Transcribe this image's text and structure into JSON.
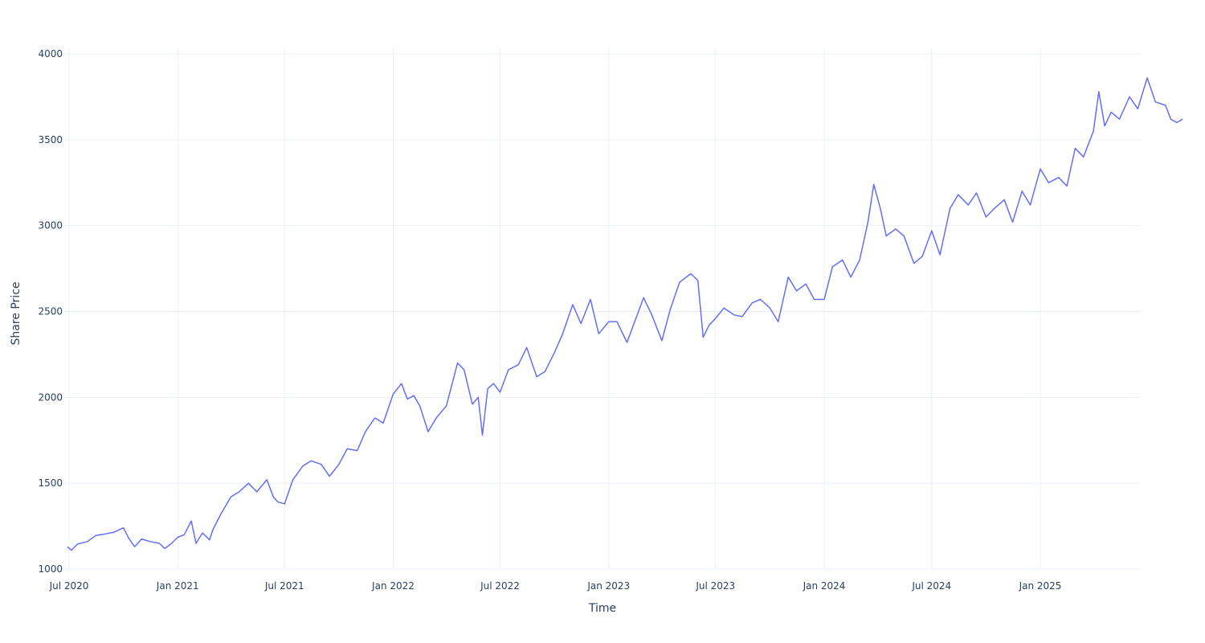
{
  "chart_data": {
    "type": "line",
    "title": "",
    "xlabel": "Time",
    "ylabel": "Share Price",
    "grid": true,
    "legend": "none",
    "line_color": "#636efa",
    "xlim": [
      "2020-07-01",
      "2025-09-30"
    ],
    "ylim": [
      1000,
      4000
    ],
    "x_ticks": [
      {
        "date": "2020-07-01",
        "label": "Jul 2020"
      },
      {
        "date": "2021-01-01",
        "label": "Jan 2021"
      },
      {
        "date": "2021-07-01",
        "label": "Jul 2021"
      },
      {
        "date": "2022-01-01",
        "label": "Jan 2022"
      },
      {
        "date": "2022-07-01",
        "label": "Jul 2022"
      },
      {
        "date": "2023-01-01",
        "label": "Jan 2023"
      },
      {
        "date": "2023-07-01",
        "label": "Jul 2023"
      },
      {
        "date": "2024-01-01",
        "label": "Jan 2024"
      },
      {
        "date": "2024-07-01",
        "label": "Jul 2024"
      },
      {
        "date": "2025-01-01",
        "label": "Jan 2025"
      }
    ],
    "y_ticks": [
      1000,
      1500,
      2000,
      2500,
      3000,
      3500,
      4000
    ],
    "series": [
      {
        "x": [
          "2020-06-28",
          "2020-07-05",
          "2020-07-15",
          "2020-08-01",
          "2020-08-15",
          "2020-09-01",
          "2020-09-15",
          "2020-10-01",
          "2020-10-10",
          "2020-10-20",
          "2020-11-01",
          "2020-11-15",
          "2020-12-01",
          "2020-12-10",
          "2020-12-20",
          "2021-01-01",
          "2021-01-12",
          "2021-01-24",
          "2021-02-01",
          "2021-02-12",
          "2021-02-24",
          "2021-03-01",
          "2021-03-15",
          "2021-04-01",
          "2021-04-15",
          "2021-05-01",
          "2021-05-15",
          "2021-06-01",
          "2021-06-12",
          "2021-06-20",
          "2021-07-01",
          "2021-07-15",
          "2021-08-01",
          "2021-08-15",
          "2021-09-01",
          "2021-09-15",
          "2021-10-01",
          "2021-10-15",
          "2021-11-01",
          "2021-11-15",
          "2021-12-01",
          "2021-12-15",
          "2022-01-01",
          "2022-01-15",
          "2022-01-25",
          "2022-02-05",
          "2022-02-15",
          "2022-03-01",
          "2022-03-15",
          "2022-04-01",
          "2022-04-20",
          "2022-05-01",
          "2022-05-15",
          "2022-05-25",
          "2022-06-01",
          "2022-06-10",
          "2022-06-20",
          "2022-07-01",
          "2022-07-15",
          "2022-08-01",
          "2022-08-15",
          "2022-09-01",
          "2022-09-15",
          "2022-10-01",
          "2022-10-15",
          "2022-11-01",
          "2022-11-15",
          "2022-12-01",
          "2022-12-15",
          "2023-01-01",
          "2023-01-15",
          "2023-02-01",
          "2023-02-15",
          "2023-03-01",
          "2023-03-15",
          "2023-04-01",
          "2023-04-15",
          "2023-05-01",
          "2023-05-20",
          "2023-06-01",
          "2023-06-10",
          "2023-06-20",
          "2023-07-01",
          "2023-07-15",
          "2023-08-01",
          "2023-08-15",
          "2023-09-01",
          "2023-09-15",
          "2023-10-01",
          "2023-10-15",
          "2023-11-01",
          "2023-11-15",
          "2023-12-01",
          "2023-12-15",
          "2024-01-01",
          "2024-01-15",
          "2024-02-01",
          "2024-02-15",
          "2024-03-01",
          "2024-03-15",
          "2024-03-25",
          "2024-04-05",
          "2024-04-15",
          "2024-05-01",
          "2024-05-15",
          "2024-06-01",
          "2024-06-15",
          "2024-07-01",
          "2024-07-15",
          "2024-08-01",
          "2024-08-15",
          "2024-09-01",
          "2024-09-15",
          "2024-10-01",
          "2024-10-15",
          "2024-11-01",
          "2024-11-15",
          "2024-12-01",
          "2024-12-15",
          "2025-01-01",
          "2025-01-15",
          "2025-02-01",
          "2025-02-15",
          "2025-03-01",
          "2025-03-15",
          "2025-04-01",
          "2025-04-10",
          "2025-04-20",
          "2025-05-01",
          "2025-05-15",
          "2025-06-01",
          "2025-06-15",
          "2025-07-01",
          "2025-07-15",
          "2025-08-01",
          "2025-08-10",
          "2025-08-20",
          "2025-08-30"
        ],
        "y": [
          1130,
          1110,
          1145,
          1160,
          1195,
          1205,
          1215,
          1240,
          1180,
          1130,
          1175,
          1160,
          1150,
          1120,
          1145,
          1185,
          1200,
          1280,
          1150,
          1210,
          1170,
          1225,
          1320,
          1420,
          1450,
          1500,
          1450,
          1520,
          1420,
          1390,
          1380,
          1520,
          1600,
          1630,
          1610,
          1540,
          1610,
          1700,
          1690,
          1800,
          1880,
          1850,
          2020,
          2080,
          1990,
          2010,
          1950,
          1800,
          1880,
          1950,
          2200,
          2160,
          1960,
          2000,
          1780,
          2050,
          2080,
          2030,
          2160,
          2190,
          2290,
          2120,
          2150,
          2260,
          2370,
          2540,
          2430,
          2570,
          2370,
          2440,
          2440,
          2320,
          2450,
          2580,
          2480,
          2330,
          2510,
          2670,
          2720,
          2680,
          2350,
          2420,
          2460,
          2520,
          2480,
          2470,
          2550,
          2570,
          2520,
          2440,
          2700,
          2620,
          2660,
          2570,
          2570,
          2760,
          2800,
          2700,
          2800,
          3020,
          3240,
          3100,
          2940,
          2980,
          2940,
          2780,
          2820,
          2970,
          2830,
          3100,
          3180,
          3120,
          3190,
          3050,
          3100,
          3150,
          3020,
          3200,
          3120,
          3330,
          3250,
          3280,
          3230,
          3450,
          3400,
          3550,
          3780,
          3580,
          3660,
          3620,
          3750,
          3680,
          3860,
          3720,
          3700,
          3620,
          3600,
          3620
        ]
      }
    ]
  }
}
